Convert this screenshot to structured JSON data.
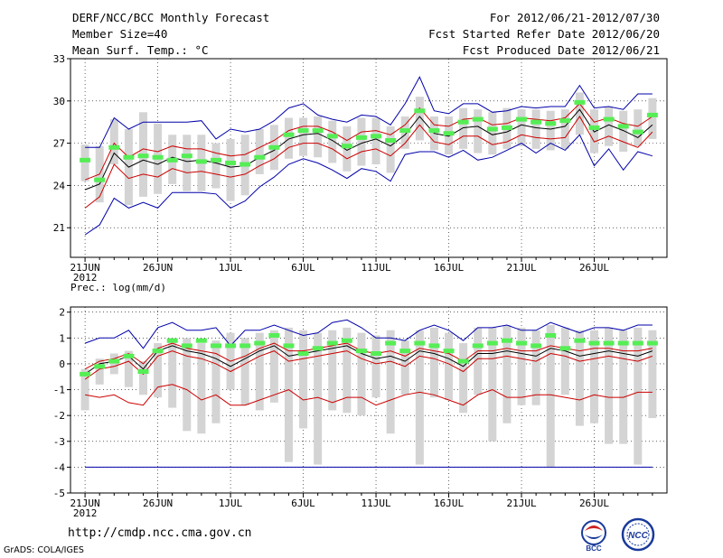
{
  "header": {
    "title": "DERF/NCC/BCC Monthly Forecast",
    "member_size": "Member Size=40",
    "variable1": "Mean Surf. Temp.: °C",
    "for_range": "For 2012/06/21-2012/07/30",
    "fcst_started": "Fcst Started Refer Date 2012/06/20",
    "fcst_produced": "Fcst Produced Date 2012/06/21"
  },
  "footer": {
    "url": "http://cmdp.ncc.cma.gov.cn",
    "grads": "GrADS: COLA/IGES",
    "logo_bcc_text": "BCC",
    "logo_ncc_text": "NCC"
  },
  "colors": {
    "box": "#d4d4d4",
    "mean": "#000000",
    "spread": "#cc0000",
    "envelope": "#0000aa",
    "ensemble_mark": "#55ee55",
    "grid": "#000000"
  },
  "chart_data": [
    {
      "type": "box-ensemble",
      "title": "Mean Surf. Temp.: °C",
      "ylim": [
        18.9,
        33
      ],
      "yticks": [
        21,
        24,
        27,
        30,
        33
      ],
      "x_tick_labels": [
        "21JUN",
        "26JUN",
        "1JUL",
        "6JUL",
        "11JUL",
        "16JUL",
        "21JUL",
        "26JUL"
      ],
      "x_tick_days": [
        1,
        6,
        11,
        16,
        21,
        26,
        31,
        36
      ],
      "x_year_label": "2012",
      "days": 40,
      "mean": [
        23.7,
        24.1,
        26.3,
        25.3,
        25.8,
        25.5,
        26.0,
        25.7,
        25.8,
        25.6,
        25.3,
        25.4,
        26.0,
        26.5,
        27.3,
        27.6,
        27.7,
        27.2,
        26.5,
        27.0,
        27.3,
        26.8,
        27.6,
        28.9,
        27.7,
        27.5,
        28.1,
        28.2,
        27.6,
        27.8,
        28.3,
        28.1,
        28.0,
        28.2,
        29.4,
        27.8,
        28.3,
        27.9,
        27.4,
        28.3
      ],
      "upper": [
        24.4,
        24.8,
        27.0,
        26.0,
        26.6,
        26.4,
        26.8,
        26.6,
        26.6,
        26.3,
        26.1,
        26.2,
        26.7,
        27.2,
        27.9,
        28.2,
        28.2,
        27.8,
        27.2,
        27.8,
        27.9,
        27.6,
        28.3,
        29.5,
        28.3,
        28.2,
        28.7,
        28.8,
        28.3,
        28.4,
        28.8,
        28.7,
        28.6,
        28.8,
        29.8,
        28.5,
        28.8,
        28.4,
        28.2,
        28.9
      ],
      "lower": [
        22.4,
        23.2,
        25.5,
        24.5,
        24.8,
        24.6,
        25.2,
        24.9,
        25.0,
        24.8,
        24.6,
        24.8,
        25.4,
        25.9,
        26.7,
        27.0,
        27.0,
        26.6,
        25.9,
        26.4,
        26.6,
        26.1,
        27.0,
        28.3,
        27.1,
        26.9,
        27.5,
        27.5,
        26.9,
        27.1,
        27.6,
        27.4,
        27.3,
        27.4,
        28.9,
        27.1,
        27.5,
        27.1,
        26.7,
        27.8
      ],
      "env_max": [
        26.7,
        26.7,
        28.8,
        28.0,
        28.5,
        28.5,
        28.5,
        28.5,
        28.6,
        27.3,
        28.0,
        27.8,
        28.0,
        28.6,
        29.5,
        29.8,
        29.0,
        28.7,
        28.5,
        29.0,
        28.9,
        28.3,
        29.8,
        31.7,
        29.3,
        29.1,
        29.8,
        29.8,
        29.2,
        29.3,
        29.6,
        29.5,
        29.6,
        29.6,
        31.1,
        29.5,
        29.6,
        29.4,
        30.5,
        30.5
      ],
      "env_min": [
        20.5,
        21.2,
        23.1,
        22.4,
        22.8,
        22.4,
        23.5,
        23.5,
        23.5,
        23.4,
        22.4,
        22.9,
        23.9,
        24.6,
        25.5,
        25.9,
        25.6,
        25.1,
        24.5,
        25.2,
        25.0,
        24.3,
        26.2,
        26.4,
        26.4,
        26.0,
        26.5,
        25.8,
        26.0,
        26.5,
        27.0,
        26.3,
        27.0,
        26.5,
        27.6,
        25.4,
        26.6,
        25.1,
        26.4,
        26.1
      ],
      "box_hi": [
        26.9,
        26.8,
        28.7,
        28.0,
        29.2,
        28.4,
        27.6,
        27.6,
        27.6,
        27.0,
        27.3,
        27.6,
        28.0,
        28.3,
        28.8,
        28.8,
        28.9,
        28.6,
        28.2,
        28.8,
        28.8,
        28.2,
        28.9,
        30.3,
        28.9,
        28.9,
        29.5,
        29.4,
        29.2,
        29.5,
        29.4,
        29.4,
        29.3,
        29.4,
        30.6,
        29.4,
        29.6,
        29.3,
        29.4,
        30.2
      ],
      "box_lo": [
        24.3,
        22.8,
        25.5,
        22.6,
        23.2,
        23.4,
        24.1,
        23.6,
        23.6,
        23.8,
        22.9,
        23.3,
        24.8,
        25.1,
        25.9,
        26.1,
        26.0,
        25.6,
        25.0,
        25.4,
        25.5,
        24.9,
        26.6,
        27.2,
        26.5,
        26.2,
        26.6,
        26.3,
        26.2,
        26.6,
        26.8,
        26.6,
        26.5,
        26.6,
        27.6,
        26.3,
        26.8,
        26.4,
        26.8,
        27.3
      ],
      "ensemble": [
        25.8,
        24.4,
        26.7,
        26.0,
        26.1,
        26.0,
        25.8,
        26.1,
        25.7,
        25.8,
        25.6,
        25.5,
        26.0,
        26.7,
        27.6,
        27.9,
        27.9,
        27.5,
        26.8,
        27.4,
        27.5,
        27.2,
        27.9,
        29.3,
        27.9,
        27.7,
        28.5,
        28.7,
        28.0,
        28.1,
        28.7,
        28.5,
        28.4,
        28.6,
        29.9,
        28.1,
        28.7,
        28.2,
        27.8,
        29.0
      ]
    },
    {
      "type": "box-ensemble",
      "title": "Prec.: log(mm/d)",
      "ylim": [
        -5,
        2.2
      ],
      "yticks": [
        -5,
        -4,
        -3,
        -2,
        -1,
        0,
        1,
        2
      ],
      "x_tick_labels": [
        "21JUN",
        "26JUN",
        "1JUL",
        "6JUL",
        "11JUL",
        "16JUL",
        "21JUL",
        "26JUL"
      ],
      "x_tick_days": [
        1,
        6,
        11,
        16,
        21,
        26,
        31,
        36
      ],
      "x_year_label": "2012",
      "days": 40,
      "mean": [
        -0.4,
        0.0,
        0.1,
        0.3,
        -0.2,
        0.5,
        0.7,
        0.5,
        0.4,
        0.2,
        -0.1,
        0.2,
        0.5,
        0.7,
        0.3,
        0.4,
        0.5,
        0.6,
        0.7,
        0.4,
        0.2,
        0.3,
        0.1,
        0.5,
        0.4,
        0.2,
        -0.1,
        0.4,
        0.4,
        0.5,
        0.4,
        0.3,
        0.6,
        0.5,
        0.3,
        0.4,
        0.5,
        0.4,
        0.3,
        0.5
      ],
      "upper": [
        -0.2,
        0.1,
        0.2,
        0.4,
        0.0,
        0.6,
        0.8,
        0.6,
        0.5,
        0.4,
        0.1,
        0.3,
        0.6,
        0.8,
        0.5,
        0.5,
        0.6,
        0.7,
        0.8,
        0.5,
        0.4,
        0.5,
        0.3,
        0.6,
        0.5,
        0.4,
        0.1,
        0.5,
        0.5,
        0.6,
        0.5,
        0.5,
        0.7,
        0.6,
        0.5,
        0.6,
        0.6,
        0.5,
        0.5,
        0.6
      ],
      "lower": [
        -0.6,
        -0.2,
        -0.1,
        0.1,
        -0.4,
        0.3,
        0.5,
        0.3,
        0.2,
        0.0,
        -0.3,
        0.0,
        0.3,
        0.5,
        0.1,
        0.2,
        0.3,
        0.4,
        0.5,
        0.2,
        0.0,
        0.1,
        -0.1,
        0.3,
        0.2,
        0.0,
        -0.3,
        0.2,
        0.2,
        0.3,
        0.2,
        0.1,
        0.4,
        0.3,
        0.1,
        0.2,
        0.3,
        0.2,
        0.1,
        0.3
      ],
      "env_max": [
        0.8,
        1.0,
        1.0,
        1.3,
        0.6,
        1.4,
        1.6,
        1.3,
        1.3,
        1.4,
        0.7,
        1.3,
        1.3,
        1.5,
        1.3,
        1.1,
        1.2,
        1.6,
        1.7,
        1.4,
        1.0,
        1.0,
        0.9,
        1.3,
        1.5,
        1.3,
        0.9,
        1.4,
        1.4,
        1.5,
        1.3,
        1.3,
        1.6,
        1.4,
        1.2,
        1.4,
        1.4,
        1.3,
        1.5,
        1.5
      ],
      "env_min": [
        -1.2,
        -1.3,
        -1.2,
        -1.5,
        -1.6,
        -0.9,
        -0.8,
        -1.0,
        -1.4,
        -1.2,
        -1.6,
        -1.6,
        -1.4,
        -1.2,
        -1.0,
        -1.4,
        -1.3,
        -1.5,
        -1.3,
        -1.3,
        -1.6,
        -1.4,
        -1.2,
        -1.1,
        -1.2,
        -1.4,
        -1.6,
        -1.2,
        -1.0,
        -1.3,
        -1.3,
        -1.2,
        -1.2,
        -1.3,
        -1.4,
        -1.2,
        -1.3,
        -1.3,
        -1.1,
        -1.1
      ],
      "env_min2": [
        -4,
        -4,
        -4,
        -4,
        -4,
        -4,
        -4,
        -4,
        -4,
        -4,
        -4,
        -4,
        -4,
        -4,
        -4,
        -4,
        -4,
        -4,
        -4,
        -4,
        -4,
        -4,
        -4,
        -4,
        -4,
        -4,
        -4,
        -4,
        -4,
        -4,
        -4,
        -4,
        -4,
        -4,
        -4,
        -4,
        -4,
        -4,
        -4,
        -4
      ],
      "box_hi": [
        -0.2,
        0.2,
        0.4,
        0.5,
        0.1,
        0.8,
        1.0,
        1.0,
        0.8,
        0.9,
        1.2,
        1.0,
        1.2,
        1.3,
        1.4,
        1.3,
        1.2,
        1.3,
        1.4,
        1.2,
        1.1,
        1.3,
        0.9,
        1.3,
        1.4,
        1.2,
        0.8,
        1.4,
        1.4,
        1.5,
        1.4,
        1.3,
        1.5,
        1.4,
        1.3,
        1.3,
        1.4,
        1.3,
        1.4,
        1.3
      ],
      "box_lo": [
        -1.8,
        -0.8,
        -0.4,
        -0.9,
        -1.2,
        -1.3,
        -1.7,
        -2.6,
        -2.7,
        -2.3,
        -1.0,
        -1.6,
        -1.8,
        -1.5,
        -3.8,
        -2.5,
        -3.9,
        -1.8,
        -1.9,
        -2.0,
        -1.3,
        -2.7,
        -1.2,
        -3.9,
        -1.3,
        -1.4,
        -1.9,
        -1.2,
        -3.0,
        -2.3,
        -1.6,
        -1.6,
        -4.0,
        -1.2,
        -2.4,
        -2.3,
        -3.1,
        -3.1,
        -3.9,
        -2.1
      ],
      "ensemble": [
        -0.4,
        -0.1,
        0.1,
        0.3,
        -0.3,
        0.5,
        0.9,
        0.7,
        0.9,
        0.7,
        0.7,
        0.7,
        0.8,
        1.1,
        0.7,
        0.4,
        0.6,
        0.8,
        0.9,
        0.5,
        0.4,
        0.8,
        0.5,
        0.8,
        0.7,
        0.5,
        0.1,
        0.7,
        0.8,
        0.9,
        0.8,
        0.7,
        1.1,
        0.6,
        0.9,
        0.8,
        0.8,
        0.8,
        0.8,
        0.8
      ]
    }
  ]
}
